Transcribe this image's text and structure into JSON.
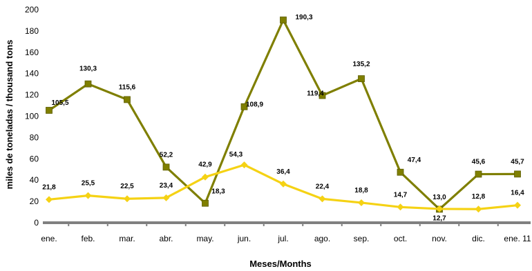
{
  "chart_data": {
    "type": "line",
    "title": "",
    "xlabel": "Meses/Months",
    "ylabel": "miles de toneladas / thousand tons",
    "ylim": [
      0,
      200
    ],
    "yticks": [
      "0",
      "20",
      "40",
      "60",
      "80",
      "100",
      "120",
      "140",
      "160",
      "180",
      "200"
    ],
    "categories": [
      "ene.",
      "feb.",
      "mar.",
      "abr.",
      "may.",
      "jun.",
      "jul.",
      "ago.",
      "sep.",
      "oct.",
      "nov.",
      "dic.",
      "ene. 11"
    ],
    "grid": false,
    "legend": "none",
    "series": [
      {
        "color": "#7f7f00",
        "marker": "square",
        "values": [
          105.5,
          130.3,
          115.6,
          52.2,
          18.3,
          108.9,
          190.3,
          119.4,
          135.2,
          47.4,
          12.7,
          45.6,
          45.7
        ],
        "labels": [
          "105,5",
          "130,3",
          "115,6",
          "52,2",
          "18,3",
          "108,9",
          "190,3",
          "119,4",
          "135,2",
          "47,4",
          "12,7",
          "45,6",
          "45,7"
        ]
      },
      {
        "color": "#f5d214",
        "marker": "diamond",
        "values": [
          21.8,
          25.5,
          22.5,
          23.4,
          42.9,
          54.3,
          36.4,
          22.4,
          18.8,
          14.7,
          13.0,
          12.8,
          16.4
        ],
        "labels": [
          "21,8",
          "25,5",
          "22,5",
          "23,4",
          "42,9",
          "54,3",
          "36,4",
          "22,4",
          "18,8",
          "14,7",
          "13,0",
          "12,8",
          "16,4"
        ]
      }
    ]
  }
}
